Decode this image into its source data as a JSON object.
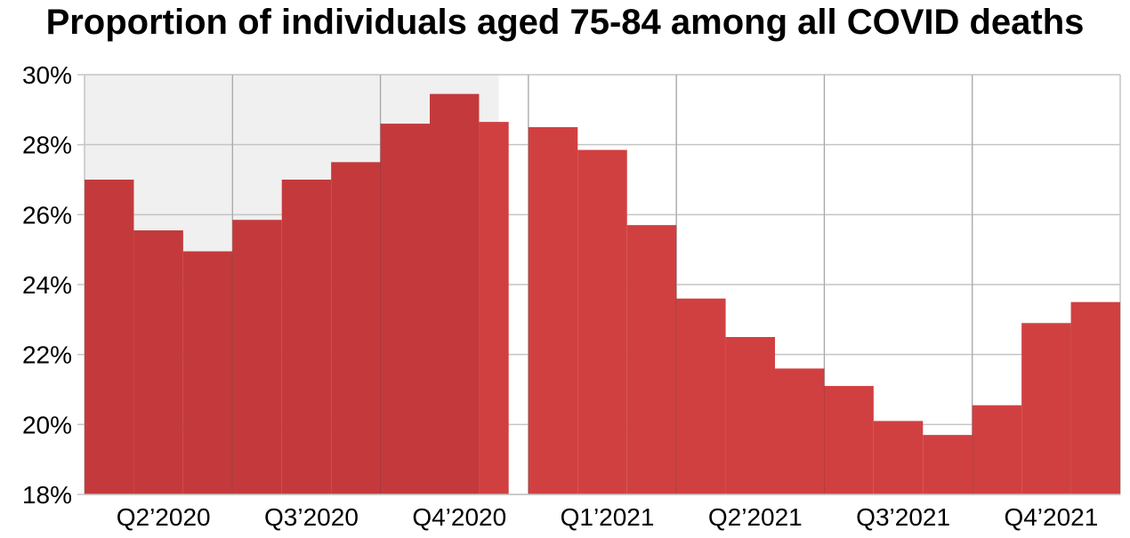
{
  "chart_data": {
    "type": "bar",
    "title": "Proportion of individuals aged 75-84 among all COVID deaths",
    "xlabel": "",
    "ylabel": "",
    "ylim": [
      18,
      30
    ],
    "y_ticks": [
      18,
      20,
      22,
      24,
      26,
      28,
      30
    ],
    "y_tick_labels": [
      "18%",
      "20%",
      "22%",
      "24%",
      "26%",
      "28%",
      "30%"
    ],
    "x_range": [
      0,
      21
    ],
    "quarter_boundaries": [
      0,
      3,
      6,
      9,
      12,
      15,
      18,
      21
    ],
    "quarter_labels": [
      "Q2’2020",
      "Q3’2020",
      "Q4’2020",
      "Q1’2021",
      "Q2’2021",
      "Q3’2021",
      "Q4’2021"
    ],
    "quarter_label_positions": [
      1.6,
      4.6,
      7.6,
      10.6,
      13.6,
      16.6,
      19.6
    ],
    "shaded_region": [
      0,
      8.4
    ],
    "grid": true,
    "colors": {
      "bar": "#d14040",
      "bar_shaded": "#c43a3c",
      "shade": "#f0f0f0",
      "grid": "#c4c4c4"
    },
    "series": [
      {
        "values": [
          27.0,
          25.55,
          24.95,
          25.85,
          27.0,
          27.5,
          28.6,
          29.45,
          28.65,
          28.5,
          27.85,
          25.7,
          23.6,
          22.5,
          21.6,
          21.1,
          20.1,
          19.7,
          20.55,
          22.9,
          23.5
        ],
        "x_start": [
          0,
          1,
          2,
          3,
          4,
          5,
          6,
          7,
          8,
          9,
          10,
          11,
          12,
          13,
          14,
          15,
          16,
          17,
          18,
          19,
          20
        ],
        "x_end": [
          1,
          2,
          3,
          4,
          5,
          6,
          7,
          8,
          8.6,
          10,
          11,
          12,
          13,
          14,
          15,
          16,
          17,
          18,
          19,
          20,
          21
        ]
      }
    ]
  }
}
